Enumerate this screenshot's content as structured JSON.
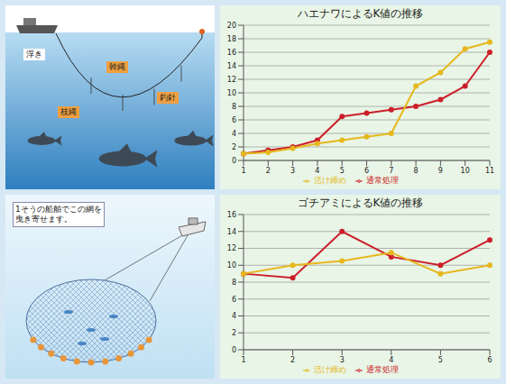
{
  "chart_data": [
    {
      "type": "line",
      "title": "ハエナワによるK値の推移",
      "categories": [
        "1",
        "2",
        "3",
        "4",
        "5",
        "6",
        "7",
        "8",
        "9",
        "10",
        "11"
      ],
      "series": [
        {
          "name": "通常処理",
          "color": "#cc1f2a",
          "marker": "circle",
          "line_style": "solid",
          "values": [
            1,
            1.5,
            2,
            3,
            6.5,
            7,
            7.5,
            8,
            9,
            11,
            16
          ]
        },
        {
          "name": "活け締め",
          "color": "#e6b81e",
          "marker": "circle",
          "line_style": "solid",
          "values": [
            1,
            1.2,
            1.8,
            2.5,
            3,
            3.5,
            4,
            11,
            13,
            16.5,
            17.5
          ]
        }
      ],
      "ylim": [
        0,
        20
      ],
      "yticks": [
        0,
        2,
        4,
        6,
        8,
        10,
        12,
        14,
        16,
        18,
        20
      ],
      "grid": true,
      "legend": "bottom"
    },
    {
      "type": "line",
      "title": "ゴチアミによるK値の推移",
      "categories": [
        "1",
        "2",
        "3",
        "4",
        "5",
        "6"
      ],
      "series": [
        {
          "name": "通常処理",
          "color": "#cc1f2a",
          "marker": "circle",
          "line_style": "solid",
          "values": [
            9,
            8.5,
            14,
            11,
            10,
            13
          ]
        },
        {
          "name": "活け締め",
          "color": "#e6b81e",
          "marker": "circle",
          "line_style": "solid",
          "values": [
            9,
            10,
            10.5,
            11.5,
            9,
            10
          ]
        }
      ],
      "ylim": [
        0,
        16
      ],
      "yticks": [
        0,
        2,
        4,
        6,
        8,
        10,
        12,
        14,
        16
      ],
      "grid": true,
      "legend": "bottom"
    }
  ],
  "diagrams": [
    {
      "labels": [
        "幹縄",
        "枝縄",
        "釣針",
        "浮き"
      ]
    },
    {
      "caption": "1そうの船舶でこの網を曳き寄せます。"
    }
  ]
}
